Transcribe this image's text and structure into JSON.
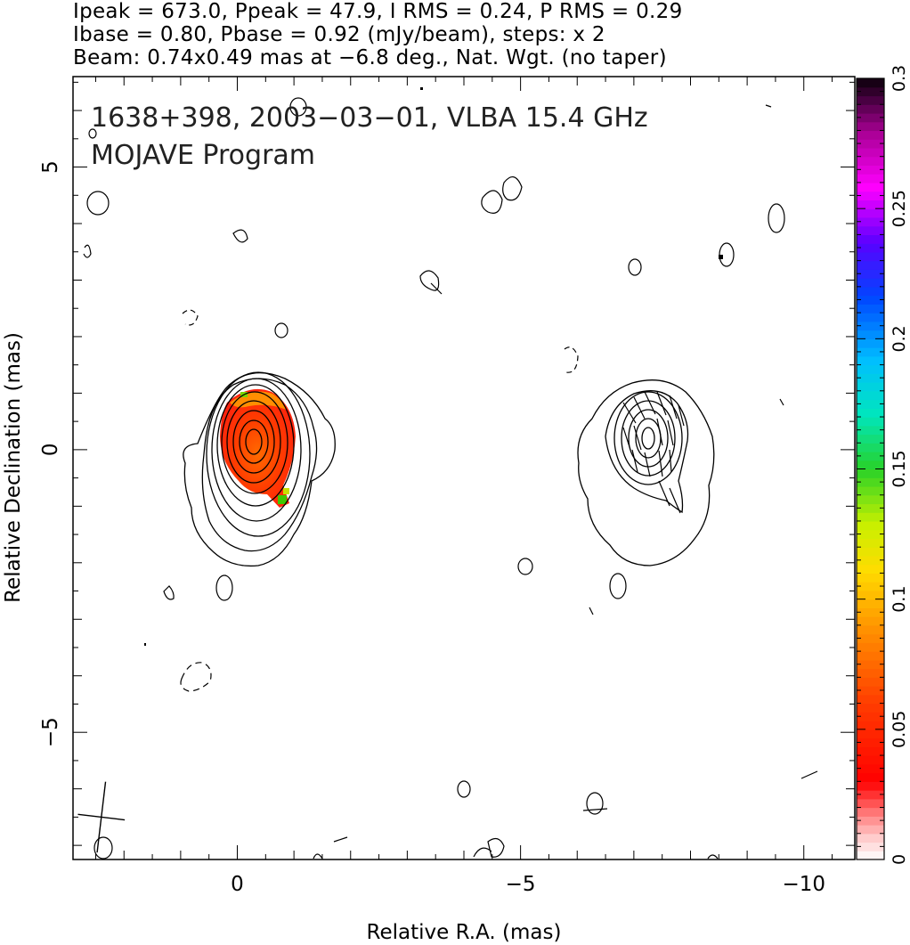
{
  "header": {
    "line1": "Ipeak = 673.0, Ppeak = 47.9, I RMS = 0.24, P RMS = 0.29",
    "line2": "Ibase = 0.80, Pbase = 0.92 (mJy/beam), steps: x 2",
    "line3": "Beam: 0.74x0.49 mas at −6.8 deg., Nat. Wgt. (no taper)"
  },
  "chart_data": {
    "type": "heatmap",
    "title": "1638+398, 2003−03−01, VLBA 15.4 GHz",
    "subtitle": "MOJAVE Program",
    "xlabel": "Relative R.A. (mas)",
    "ylabel": "Relative Declination (mas)",
    "xlim": [
      2.9,
      -10.9
    ],
    "ylim": [
      -7.25,
      6.6
    ],
    "x_reversed": true,
    "x_ticks": [
      0,
      -5,
      -10
    ],
    "x_tick_labels": [
      "0",
      "−5",
      "−10"
    ],
    "y_ticks": [
      5,
      0,
      -5
    ],
    "y_tick_labels": [
      "5",
      "0",
      "−5"
    ],
    "colorbar": {
      "range": [
        0,
        0.3
      ],
      "ticks": [
        0,
        0.05,
        0.1,
        0.15,
        0.2,
        0.25,
        0.3
      ],
      "tick_labels": [
        "0",
        "0.05",
        "0.1",
        "0.15",
        "0.2",
        "0.25",
        "0.3"
      ]
    },
    "components": [
      {
        "x": -0.1,
        "y": 0.15,
        "contour_levels": 10,
        "polarization_color_value": 0.06
      },
      {
        "x": -7.0,
        "y": 0.15,
        "contour_levels": 7
      }
    ],
    "beam": {
      "major_mas": 0.74,
      "minor_mas": 0.49,
      "pa_deg": -6.8,
      "x": 2.4,
      "y": -6.5
    },
    "grid": false,
    "legend": "colorbar-right"
  }
}
